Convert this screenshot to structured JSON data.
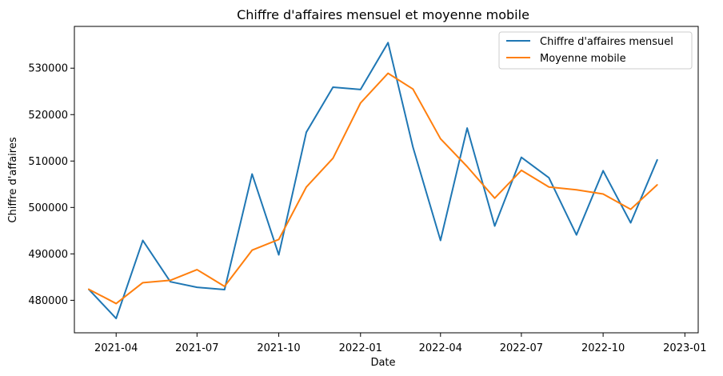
{
  "chart_data": {
    "type": "line",
    "title": "Chiffre d'affaires mensuel et moyenne mobile",
    "xlabel": "Date",
    "ylabel": "Chiffre d'affaires",
    "x": [
      "2021-03-01",
      "2021-04-01",
      "2021-05-01",
      "2021-06-01",
      "2021-07-01",
      "2021-08-01",
      "2021-09-01",
      "2021-10-01",
      "2021-11-01",
      "2021-12-01",
      "2022-01-01",
      "2022-02-01",
      "2022-03-01",
      "2022-04-01",
      "2022-05-01",
      "2022-06-01",
      "2022-07-01",
      "2022-08-01",
      "2022-09-01",
      "2022-10-01",
      "2022-11-01",
      "2022-12-01"
    ],
    "xlim": [
      "2021-02-13",
      "2023-01-16"
    ],
    "ylim": [
      473000,
      539000
    ],
    "x_ticks": [
      {
        "date": "2021-04-01",
        "label": "2021-04"
      },
      {
        "date": "2021-07-01",
        "label": "2021-07"
      },
      {
        "date": "2021-10-01",
        "label": "2021-10"
      },
      {
        "date": "2022-01-01",
        "label": "2022-01"
      },
      {
        "date": "2022-04-01",
        "label": "2022-04"
      },
      {
        "date": "2022-07-01",
        "label": "2022-07"
      },
      {
        "date": "2022-10-01",
        "label": "2022-10"
      },
      {
        "date": "2023-01-01",
        "label": "2023-01"
      }
    ],
    "y_ticks": [
      {
        "value": 480000,
        "label": "480000"
      },
      {
        "value": 490000,
        "label": "490000"
      },
      {
        "value": 500000,
        "label": "500000"
      },
      {
        "value": 510000,
        "label": "510000"
      },
      {
        "value": 520000,
        "label": "520000"
      },
      {
        "value": 530000,
        "label": "530000"
      }
    ],
    "grid": false,
    "legend_position": "top-right",
    "series": [
      {
        "name": "Chiffre d'affaires mensuel",
        "color": "#1f77b4",
        "values": [
          482400,
          476100,
          492900,
          484000,
          482800,
          482300,
          507200,
          489800,
          516200,
          525900,
          525400,
          535500,
          513000,
          492900,
          517100,
          496000,
          510800,
          506400,
          494100,
          507900,
          496700,
          510300
        ]
      },
      {
        "name": "Moyenne mobile",
        "color": "#ff7f0e",
        "values": [
          482400,
          479300,
          483800,
          484300,
          486600,
          483000,
          490800,
          493100,
          504400,
          510600,
          522500,
          528900,
          525500,
          514800,
          508800,
          502000,
          508000,
          504400,
          503800,
          502900,
          499600,
          504900
        ]
      }
    ]
  }
}
